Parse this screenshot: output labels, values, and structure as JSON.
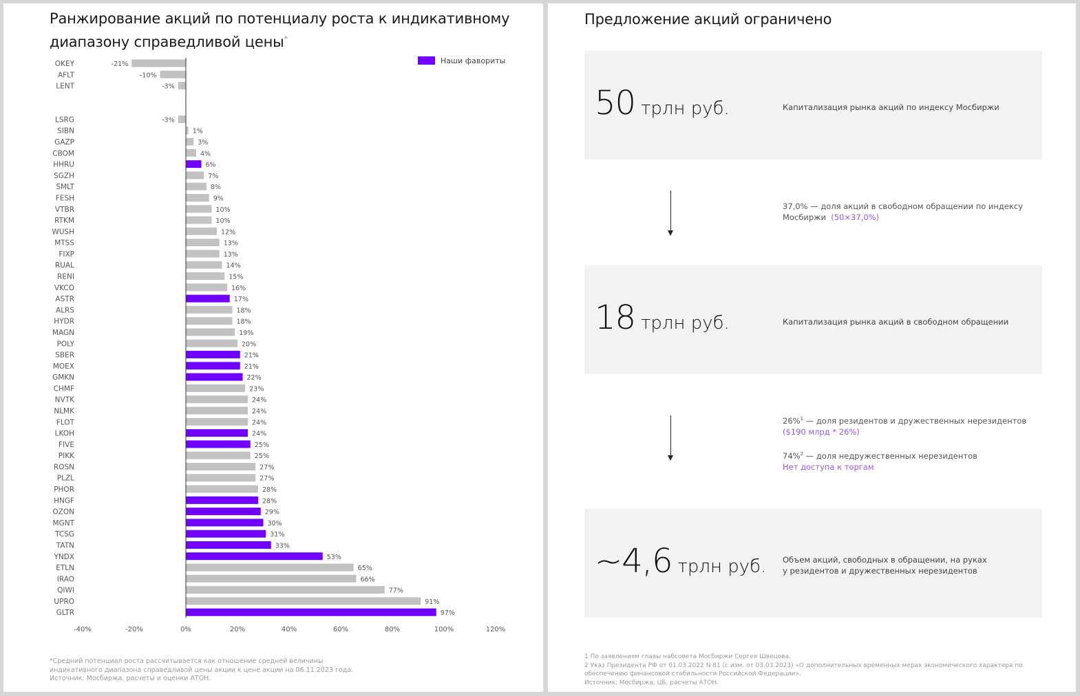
{
  "left": {
    "title": "Ранжирование акций по потенциалу роста к индикативному диапазону справедливой цены",
    "title_mark": "*",
    "footnote_lines": [
      "*Средний потенциал роста рассчитывается как отношение средней величины",
      "индикативного диапазона справедливой цены акции к цене акции на 06.11.2023 года.",
      "Источник: Мосбиржа, расчеты и оценки АТОН."
    ]
  },
  "chart_data": {
    "type": "bar",
    "orientation": "horizontal",
    "title": "Ранжирование акций по потенциалу роста к индикативному диапазону справедливой цены",
    "xlabel": "",
    "ylabel": "",
    "xlim": [
      -40,
      120
    ],
    "x_ticks": [
      "-40%",
      "-20%",
      "0%",
      "20%",
      "40%",
      "60%",
      "80%",
      "100%",
      "120%"
    ],
    "x_tick_values": [
      -40,
      -20,
      0,
      20,
      40,
      60,
      80,
      100,
      120
    ],
    "grid": false,
    "legend": {
      "position": "top-right",
      "entries": [
        {
          "label": "Наши фавориты",
          "color": "#7000ff"
        }
      ]
    },
    "colors": {
      "default": "#c2c2c2",
      "favorite": "#7000ff"
    },
    "value_suffix": "%",
    "gap_after_index": 2,
    "gap_rows": 2,
    "categories": [
      "OKEY",
      "AFLT",
      "LENT",
      "LSRG",
      "SIBN",
      "GAZP",
      "CBOM",
      "HHRU",
      "SGZH",
      "SMLT",
      "FESH",
      "VTBR",
      "RTKM",
      "WUSH",
      "MTSS",
      "FIXP",
      "RUAL",
      "RENI",
      "VKCO",
      "ASTR",
      "ALRS",
      "HYDR",
      "MAGN",
      "POLY",
      "SBER",
      "MOEX",
      "GMKN",
      "CHMF",
      "NVTK",
      "NLMK",
      "FLOT",
      "LKOH",
      "FIVE",
      "PIKK",
      "ROSN",
      "PLZL",
      "PHOR",
      "HNGF",
      "OZON",
      "MGNT",
      "TCSG",
      "TATN",
      "YNDX",
      "ETLN",
      "IRAO",
      "QIWI",
      "UPRO",
      "GLTR"
    ],
    "values": [
      -21,
      -10,
      -3,
      -3,
      1,
      3,
      4,
      6,
      7,
      8,
      9,
      10,
      10,
      12,
      13,
      13,
      14,
      15,
      16,
      17,
      18,
      18,
      19,
      20,
      21,
      21,
      22,
      23,
      24,
      24,
      24,
      24,
      25,
      25,
      27,
      27,
      28,
      28,
      29,
      30,
      31,
      33,
      53,
      65,
      66,
      77,
      91,
      97
    ],
    "favorites": [
      "HHRU",
      "ASTR",
      "SBER",
      "MOEX",
      "GMKN",
      "LKOH",
      "FIVE",
      "HNGF",
      "OZON",
      "MGNT",
      "TCSG",
      "TATN",
      "YNDX",
      "GLTR"
    ]
  },
  "right": {
    "title": "Предложение акций ограничено",
    "cards": [
      {
        "value": "50",
        "unit": "трлн руб.",
        "desc_lines": [
          "Капитализация рынка акций по индексу Мосбиржи"
        ]
      },
      {
        "value": "18",
        "unit": "трлн руб.",
        "desc_lines": [
          "Капитализация рынка акций в свободном обращении"
        ]
      },
      {
        "value": "~4,6",
        "unit": "трлн руб.",
        "desc_lines": [
          "Объем акций, свободных в обращении, на руках",
          "у резидентов и дружественных нерезидентов"
        ]
      }
    ],
    "step1": {
      "line1": "37,0% — доля акций в свободном обращении по индексу",
      "line2": "Мосбиржи",
      "highlight": "(50×37,0%)"
    },
    "step2": {
      "a_pct": "26%",
      "a_sup": "1",
      "a_text": " — доля резидентов и дружественных нерезидентов",
      "a_highlight": "($190 млрд * 26%)",
      "b_pct": "74%",
      "b_sup": "2",
      "b_text": " — доля недружественных нерезидентов",
      "b_highlight": "Нет доступа к торгам"
    },
    "footnote_lines": [
      "1 По заявлениям главы набсовета Мосбиржи Сергея Швецова.",
      "2 Указ Президента РФ от 01.03.2022 N 81 (с изм. от 03.03.2023) «О дополнительных временных мерах экономического характера по",
      "обеспечению финансовой стабильности Российской Федерации».",
      "Источник: Мосбиржа, ЦБ, расчеты АТОН."
    ]
  }
}
